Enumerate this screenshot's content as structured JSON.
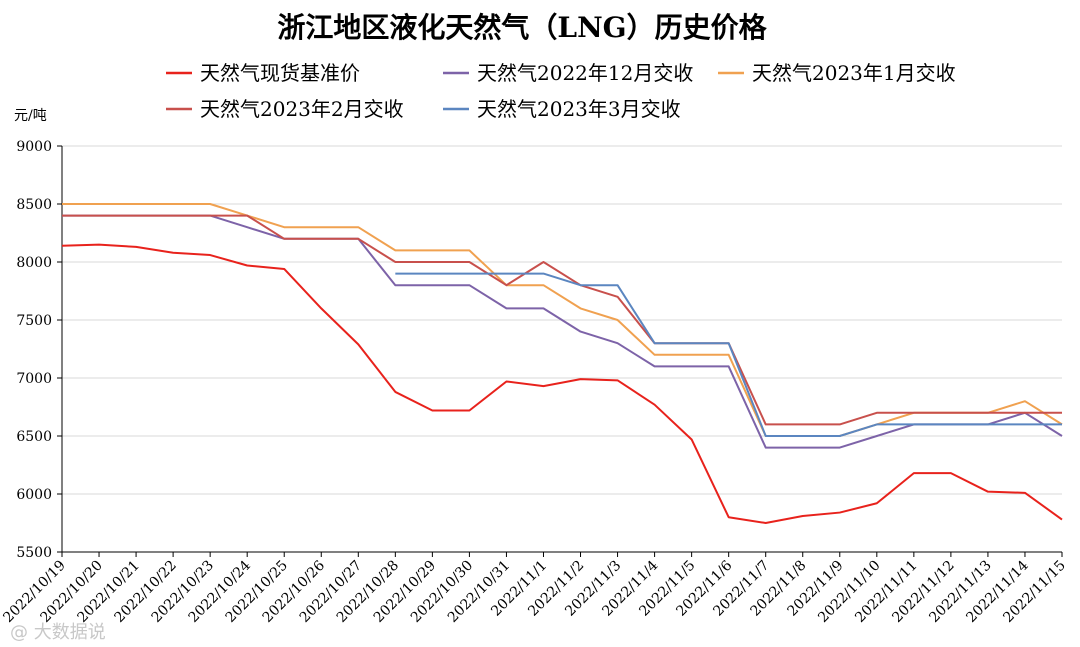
{
  "chart_data": {
    "type": "line",
    "title": "浙江地区液化天然气（LNG）历史价格",
    "unit_label": "元/吨",
    "ylim": [
      5500,
      9000
    ],
    "yticks": [
      5500,
      6000,
      6500,
      7000,
      7500,
      8000,
      8500,
      9000
    ],
    "grid": true,
    "legend_position": "top",
    "x": [
      "2022/10/19",
      "2022/10/20",
      "2022/10/21",
      "2022/10/22",
      "2022/10/23",
      "2022/10/24",
      "2022/10/25",
      "2022/10/26",
      "2022/10/27",
      "2022/10/28",
      "2022/10/29",
      "2022/10/30",
      "2022/10/31",
      "2022/11/1",
      "2022/11/2",
      "2022/11/3",
      "2022/11/4",
      "2022/11/5",
      "2022/11/6",
      "2022/11/7",
      "2022/11/8",
      "2022/11/9",
      "2022/11/10",
      "2022/11/11",
      "2022/11/12",
      "2022/11/13",
      "2022/11/14",
      "2022/11/15"
    ],
    "series": [
      {
        "name": "天然气现货基准价",
        "color": "#e8221c",
        "values": [
          8140,
          8150,
          8130,
          8080,
          8060,
          7970,
          7940,
          7600,
          7290,
          6880,
          6720,
          6720,
          6970,
          6930,
          6990,
          6980,
          6770,
          6470,
          5800,
          5750,
          5810,
          5840,
          5920,
          6180,
          6180,
          6020,
          6010,
          5780
        ]
      },
      {
        "name": "天然气2022年12月交收",
        "color": "#7d63a8",
        "values": [
          8400,
          8400,
          8400,
          8400,
          8400,
          8300,
          8200,
          8200,
          8200,
          7800,
          7800,
          7800,
          7600,
          7600,
          7400,
          7300,
          7100,
          7100,
          7100,
          6400,
          6400,
          6400,
          6500,
          6600,
          6600,
          6600,
          6700,
          6500
        ]
      },
      {
        "name": "天然气2023年1月交收",
        "color": "#f0a150",
        "values": [
          8500,
          8500,
          8500,
          8500,
          8500,
          8400,
          8300,
          8300,
          8300,
          8100,
          8100,
          8100,
          7800,
          7800,
          7600,
          7500,
          7200,
          7200,
          7200,
          6500,
          6500,
          6500,
          6600,
          6700,
          6700,
          6700,
          6800,
          6600
        ]
      },
      {
        "name": "天然气2023年2月交收",
        "color": "#c8504c",
        "values": [
          8400,
          8400,
          8400,
          8400,
          8400,
          8400,
          8200,
          8200,
          8200,
          8000,
          8000,
          8000,
          7800,
          8000,
          7800,
          7700,
          7300,
          7300,
          7300,
          6600,
          6600,
          6600,
          6700,
          6700,
          6700,
          6700,
          6700,
          6700
        ]
      },
      {
        "name": "天然气2023年3月交收",
        "color": "#5b86c0",
        "values": [
          null,
          null,
          null,
          null,
          null,
          null,
          null,
          null,
          null,
          7900,
          7900,
          7900,
          7900,
          7900,
          7800,
          7800,
          7300,
          7300,
          7300,
          6500,
          6500,
          6500,
          6600,
          6600,
          6600,
          6600,
          6600,
          6600
        ]
      }
    ]
  },
  "watermark": "@ 大数据说"
}
